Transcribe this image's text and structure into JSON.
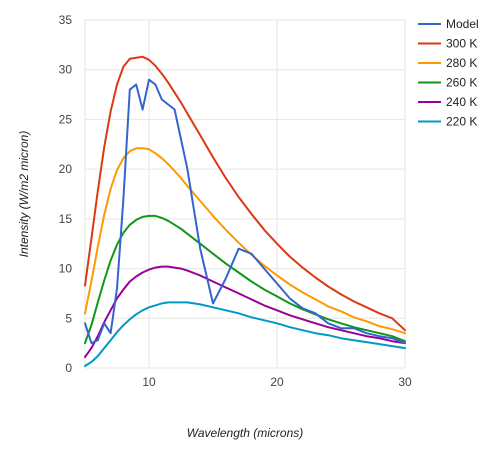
{
  "chart_data": {
    "type": "line",
    "title": "",
    "xlabel": "Wavelength (microns)",
    "ylabel": "Intensity (W/m2 micron)",
    "xlim": [
      5,
      30
    ],
    "ylim": [
      0,
      35
    ],
    "x_ticks": [
      10,
      20,
      30
    ],
    "y_ticks": [
      0,
      5,
      10,
      15,
      20,
      25,
      30,
      35
    ],
    "x_tick_labels": [
      "10",
      "20",
      "30"
    ],
    "y_tick_labels": [
      "0",
      "5",
      "10",
      "15",
      "20",
      "25",
      "30",
      "35"
    ],
    "grid": "horizontal",
    "legend_position": "right",
    "x": [
      5,
      5.5,
      6,
      6.5,
      7,
      7.5,
      8,
      8.5,
      9,
      9.5,
      10,
      10.5,
      11,
      11.5,
      12,
      12.5,
      13,
      14,
      15,
      16,
      17,
      18,
      19,
      20,
      21,
      22,
      23,
      24,
      25,
      26,
      27,
      28,
      29,
      30
    ],
    "series": [
      {
        "name": "Model",
        "color": "#3366cc",
        "values": [
          4.5,
          2.5,
          2.8,
          4.5,
          3.5,
          8.0,
          17.0,
          28.0,
          28.5,
          26.0,
          29.0,
          28.5,
          27.0,
          26.5,
          26.0,
          23.0,
          20.0,
          12.0,
          6.5,
          9.0,
          12.0,
          11.5,
          10.0,
          8.5,
          7.0,
          6.0,
          5.5,
          4.5,
          4.0,
          4.0,
          3.5,
          3.2,
          3.0,
          2.5
        ]
      },
      {
        "name": "300 K",
        "color": "#dc3912",
        "values": [
          8.3,
          13.0,
          17.8,
          22.2,
          25.8,
          28.5,
          30.3,
          31.1,
          31.2,
          31.3,
          31.0,
          30.4,
          29.6,
          28.7,
          27.7,
          26.7,
          25.6,
          23.4,
          21.2,
          19.1,
          17.2,
          15.5,
          13.9,
          12.5,
          11.2,
          10.1,
          9.1,
          8.2,
          7.4,
          6.7,
          6.1,
          5.5,
          5.0,
          3.8
        ]
      },
      {
        "name": "280 K",
        "color": "#ff9900",
        "values": [
          5.5,
          8.7,
          12.2,
          15.4,
          18.0,
          19.9,
          21.1,
          21.8,
          22.1,
          22.1,
          22.0,
          21.6,
          21.1,
          20.5,
          19.8,
          19.1,
          18.3,
          16.8,
          15.3,
          13.9,
          12.6,
          11.4,
          10.3,
          9.3,
          8.4,
          7.6,
          6.9,
          6.2,
          5.7,
          5.1,
          4.7,
          4.2,
          3.9,
          3.5
        ]
      },
      {
        "name": "260 K",
        "color": "#109618",
        "values": [
          2.5,
          4.3,
          6.6,
          8.8,
          10.8,
          12.4,
          13.6,
          14.4,
          14.9,
          15.2,
          15.3,
          15.3,
          15.1,
          14.8,
          14.4,
          14.0,
          13.5,
          12.5,
          11.5,
          10.5,
          9.6,
          8.7,
          7.9,
          7.2,
          6.5,
          5.9,
          5.4,
          4.9,
          4.5,
          4.1,
          3.8,
          3.5,
          3.2,
          2.7
        ]
      },
      {
        "name": "240 K",
        "color": "#990099",
        "values": [
          1.1,
          2.0,
          3.2,
          4.6,
          5.8,
          7.0,
          7.9,
          8.7,
          9.2,
          9.6,
          9.9,
          10.1,
          10.2,
          10.2,
          10.1,
          10.0,
          9.8,
          9.3,
          8.7,
          8.1,
          7.5,
          6.9,
          6.3,
          5.8,
          5.3,
          4.9,
          4.5,
          4.1,
          3.8,
          3.5,
          3.2,
          3.0,
          2.7,
          2.5
        ]
      },
      {
        "name": "220 K",
        "color": "#0099c6",
        "values": [
          0.2,
          0.6,
          1.2,
          2.0,
          2.8,
          3.6,
          4.3,
          4.9,
          5.4,
          5.8,
          6.1,
          6.3,
          6.5,
          6.6,
          6.6,
          6.6,
          6.6,
          6.4,
          6.1,
          5.8,
          5.5,
          5.1,
          4.8,
          4.5,
          4.1,
          3.8,
          3.5,
          3.3,
          3.0,
          2.8,
          2.6,
          2.4,
          2.2,
          2.0
        ]
      }
    ]
  }
}
